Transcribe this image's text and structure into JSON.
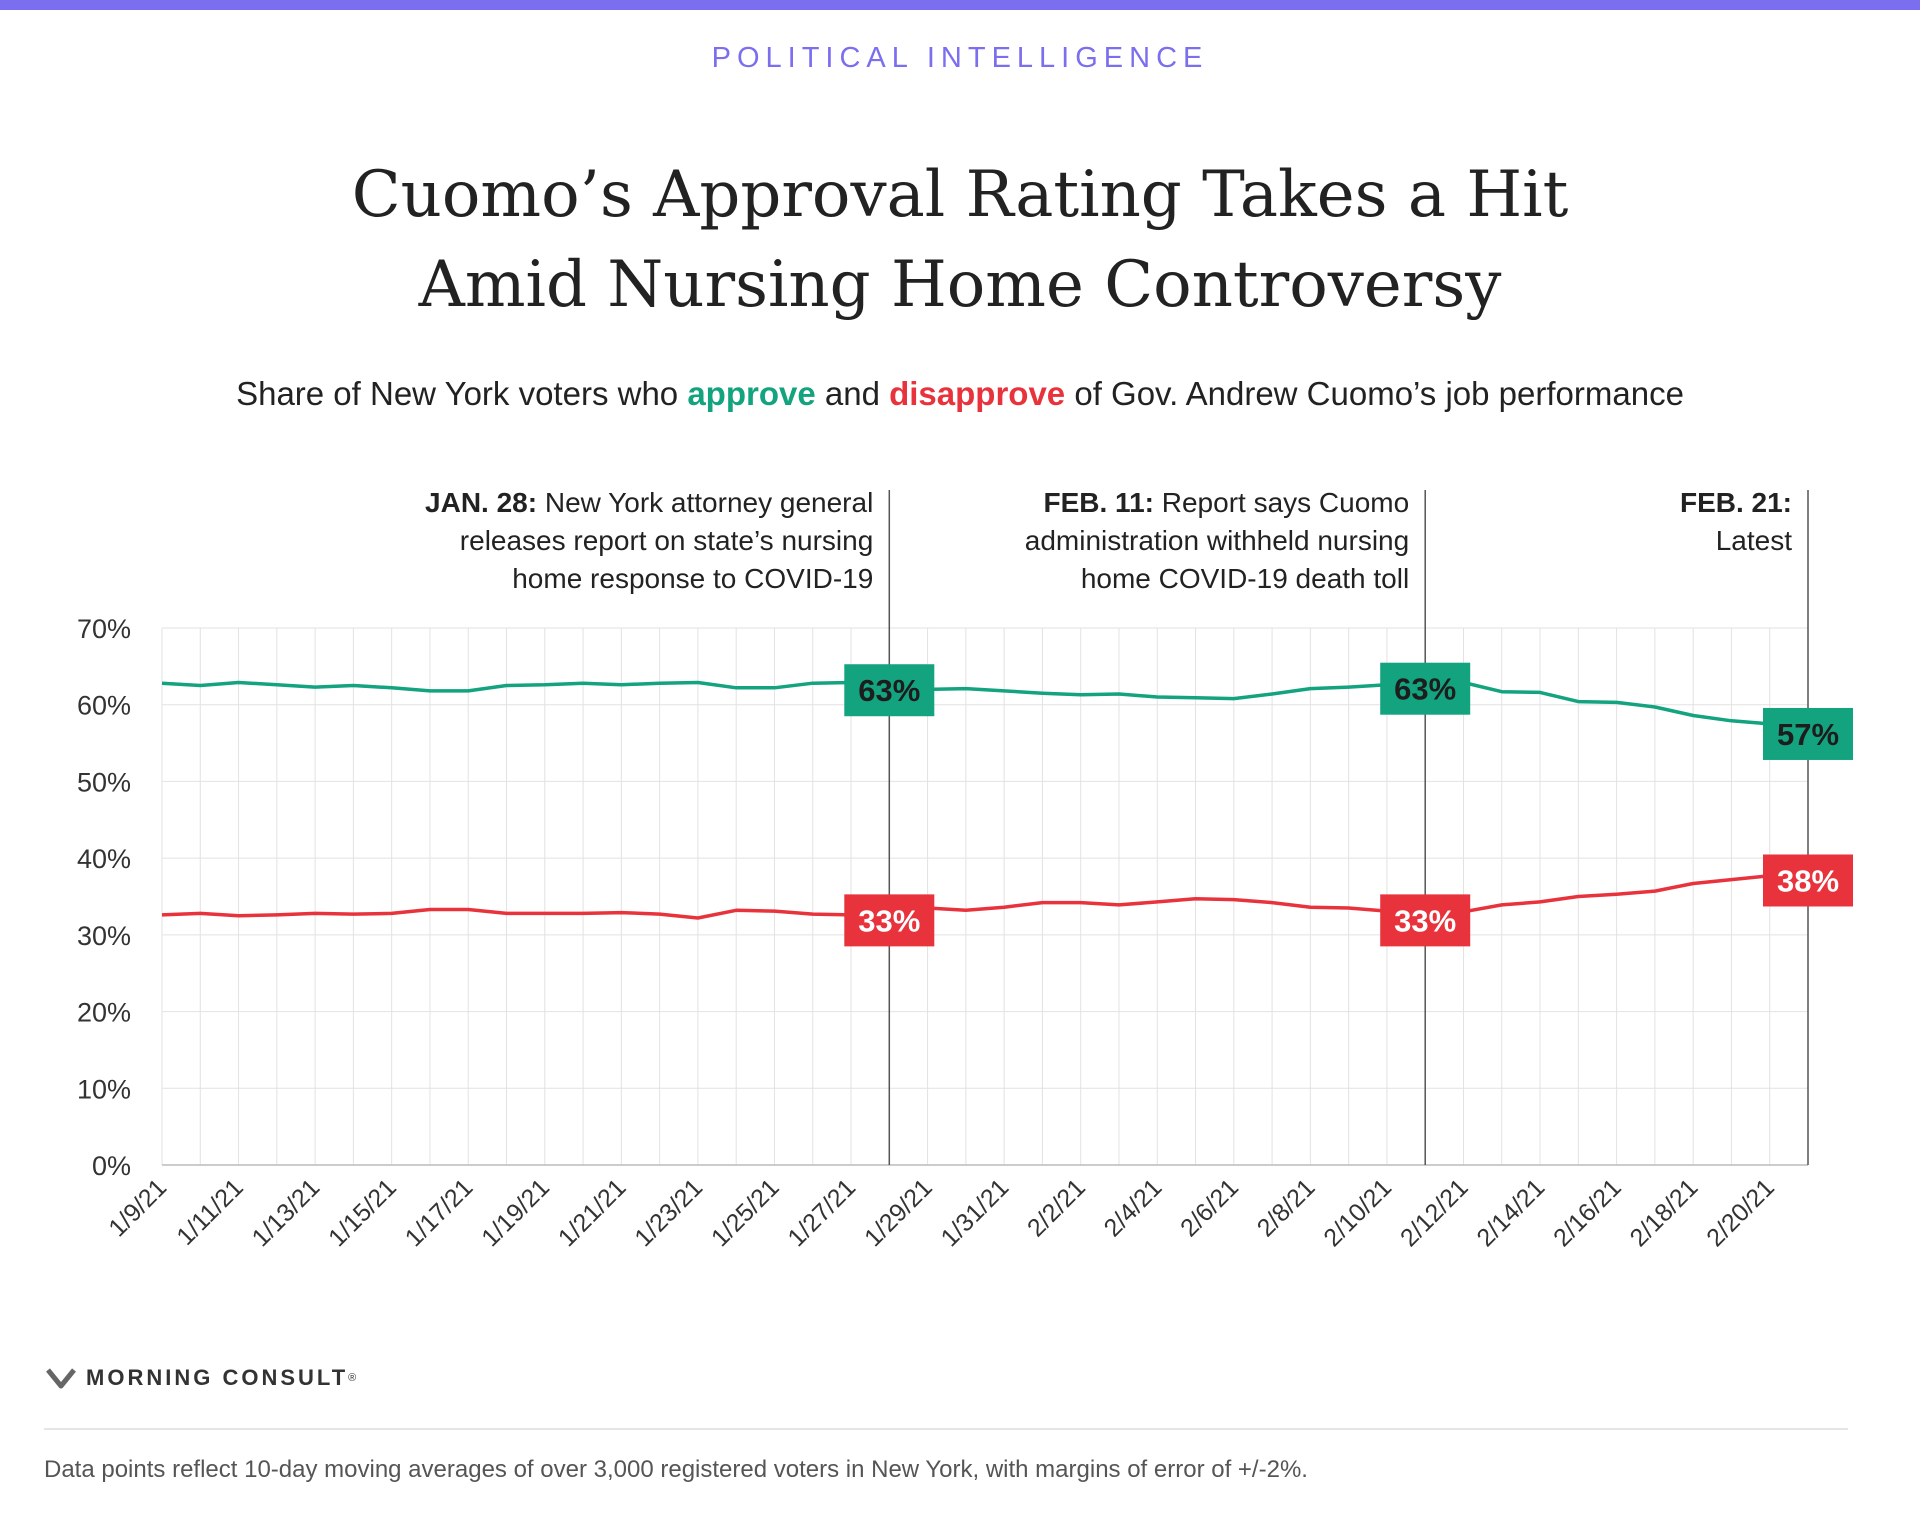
{
  "header": {
    "kicker": "POLITICAL INTELLIGENCE",
    "title_line1": "Cuomo’s Approval Rating Takes a Hit",
    "title_line2": "Amid Nursing Home Controversy",
    "subtitle_pre": "Share of New York voters who ",
    "subtitle_approve": "approve",
    "subtitle_and": " and ",
    "subtitle_disapprove": "disapprove",
    "subtitle_post": " of Gov. Andrew Cuomo’s job performance"
  },
  "colors": {
    "top_bar": "#7b6ff0",
    "kicker": "#7b6ff0",
    "approve": "#14a37f",
    "disapprove": "#e8333c"
  },
  "chart_data": {
    "type": "line",
    "x": [
      "1/9/21",
      "1/10/21",
      "1/11/21",
      "1/12/21",
      "1/13/21",
      "1/14/21",
      "1/15/21",
      "1/16/21",
      "1/17/21",
      "1/18/21",
      "1/19/21",
      "1/20/21",
      "1/21/21",
      "1/22/21",
      "1/23/21",
      "1/24/21",
      "1/25/21",
      "1/26/21",
      "1/27/21",
      "1/28/21",
      "1/29/21",
      "1/30/21",
      "1/31/21",
      "2/1/21",
      "2/2/21",
      "2/3/21",
      "2/4/21",
      "2/5/21",
      "2/6/21",
      "2/7/21",
      "2/8/21",
      "2/9/21",
      "2/10/21",
      "2/11/21",
      "2/12/21",
      "2/13/21",
      "2/14/21",
      "2/15/21",
      "2/16/21",
      "2/17/21",
      "2/18/21",
      "2/19/21",
      "2/20/21",
      "2/21/21"
    ],
    "x_tick_labels": [
      "1/9/21",
      "1/11/21",
      "1/13/21",
      "1/15/21",
      "1/17/21",
      "1/19/21",
      "1/21/21",
      "1/23/21",
      "1/25/21",
      "1/27/21",
      "1/29/21",
      "1/31/21",
      "2/2/21",
      "2/4/21",
      "2/6/21",
      "2/8/21",
      "2/10/21",
      "2/12/21",
      "2/14/21",
      "2/16/21",
      "2/18/21",
      "2/20/21"
    ],
    "series": [
      {
        "name": "approve",
        "values": [
          62.8,
          62.5,
          62.9,
          62.6,
          62.3,
          62.5,
          62.2,
          61.8,
          61.8,
          62.5,
          62.6,
          62.8,
          62.6,
          62.8,
          62.9,
          62.2,
          62.2,
          62.8,
          62.9,
          62.8,
          62.0,
          62.1,
          61.8,
          61.5,
          61.3,
          61.4,
          61.0,
          60.9,
          60.8,
          61.4,
          62.1,
          62.3,
          62.6,
          63.0,
          62.9,
          61.7,
          61.6,
          60.4,
          60.3,
          59.7,
          58.6,
          57.9,
          57.5,
          57.1
        ]
      },
      {
        "name": "disapprove",
        "values": [
          32.6,
          32.8,
          32.5,
          32.6,
          32.8,
          32.7,
          32.8,
          33.3,
          33.3,
          32.8,
          32.8,
          32.8,
          32.9,
          32.7,
          32.2,
          33.2,
          33.1,
          32.7,
          32.6,
          32.8,
          33.5,
          33.2,
          33.6,
          34.2,
          34.2,
          33.9,
          34.3,
          34.7,
          34.6,
          34.2,
          33.6,
          33.5,
          33.1,
          32.8,
          33.0,
          33.9,
          34.3,
          35.0,
          35.3,
          35.7,
          36.7,
          37.2,
          37.7,
          38.0
        ]
      }
    ],
    "value_labels": [
      {
        "series": "approve",
        "x": "1/28/21",
        "text": "63%"
      },
      {
        "series": "approve",
        "x": "2/11/21",
        "text": "63%"
      },
      {
        "series": "approve",
        "x": "2/21/21",
        "text": "57%"
      },
      {
        "series": "disapprove",
        "x": "1/28/21",
        "text": "33%"
      },
      {
        "series": "disapprove",
        "x": "2/11/21",
        "text": "33%"
      },
      {
        "series": "disapprove",
        "x": "2/21/21",
        "text": "38%"
      }
    ],
    "annotations": [
      {
        "x": "1/28/21",
        "bold": "JAN. 28:",
        "lines": [
          "New York attorney general",
          "releases report on state’s nursing",
          "home response to COVID-19"
        ]
      },
      {
        "x": "2/11/21",
        "bold": "FEB. 11:",
        "lines": [
          "Report says Cuomo",
          "administration withheld nursing",
          "home COVID-19 death toll"
        ]
      },
      {
        "x": "2/21/21",
        "bold": "FEB. 21:",
        "lines": [
          "Latest"
        ]
      }
    ],
    "y_ticks": [
      0,
      10,
      20,
      30,
      40,
      50,
      60,
      70
    ],
    "y_tick_labels": [
      "0%",
      "10%",
      "20%",
      "30%",
      "40%",
      "50%",
      "60%",
      "70%"
    ],
    "ylim": [
      0,
      70
    ],
    "grid": true
  },
  "footer": {
    "brand": "MORNING CONSULT",
    "brand_mark": "®",
    "note": "Data points reflect 10-day moving averages of over 3,000 registered voters in New York, with margins of error of +/-2%."
  }
}
